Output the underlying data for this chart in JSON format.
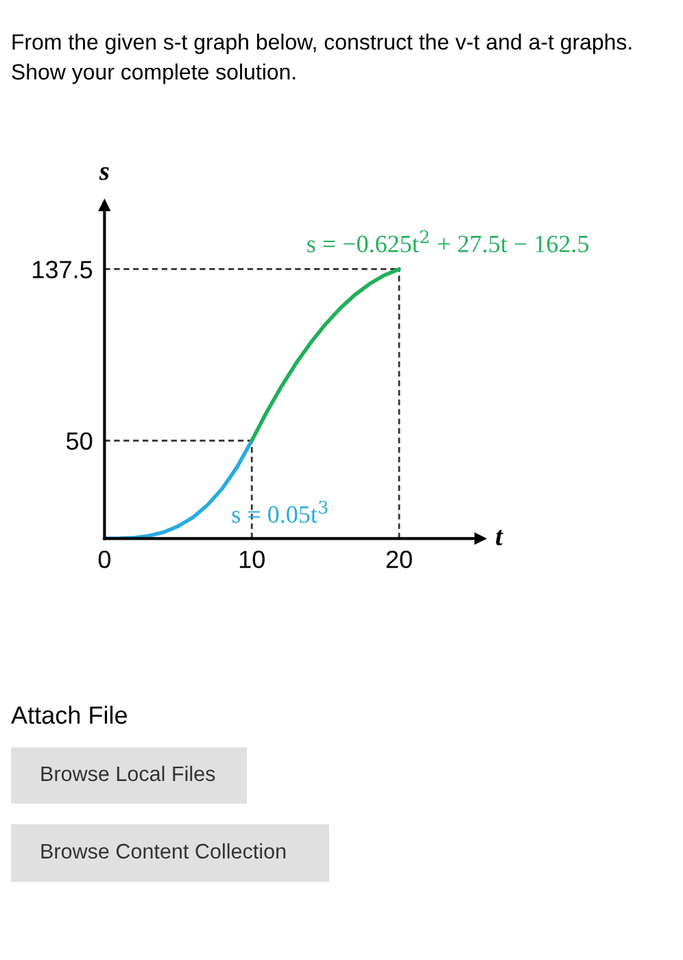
{
  "chart_data": {
    "type": "line",
    "title": "From the given s-t graph below, construct the v-t and a-t graphs. Show your complete solution.",
    "xlabel": "t",
    "ylabel": "s",
    "xlim": [
      0,
      25.5
    ],
    "ylim": [
      0,
      170
    ],
    "xticks": [
      0,
      10,
      20
    ],
    "yticks": [
      50,
      137.5
    ],
    "grid": false,
    "marker": "none",
    "line_style": "solid",
    "series": [
      {
        "name": "s = 0.05t$^{3}$",
        "color": "#29abe2",
        "x": [
          0,
          1,
          2,
          3,
          4,
          5,
          6,
          7,
          8,
          9,
          10
        ],
        "values": [
          0,
          0.1,
          0.4,
          1.4,
          3.2,
          6.3,
          10.8,
          17.2,
          25.6,
          36.5,
          50
        ]
      },
      {
        "name": "s = −0.625t$^{2}$ + 27.5t − 162.5",
        "color": "#22b05a",
        "x": [
          10,
          11,
          12,
          13,
          14,
          15,
          16,
          17,
          18,
          19,
          20
        ],
        "values": [
          50,
          64.4,
          77.5,
          89.4,
          100,
          109.4,
          117.5,
          124.4,
          130,
          134.4,
          137.5
        ]
      }
    ],
    "ref_lines": [
      {
        "axis": "y",
        "value": 50,
        "color": "#333333",
        "line_style": "dashed"
      },
      {
        "axis": "y",
        "value": 137.5,
        "color": "#333333",
        "line_style": "dashed"
      },
      {
        "axis": "x",
        "value": 10,
        "color": "#333333",
        "line_style": "dashed"
      },
      {
        "axis": "x",
        "value": 20,
        "color": "#333333",
        "line_style": "dashed"
      }
    ],
    "annotations": [
      "Attach File",
      "Browse Local Files",
      "Browse Content Collection"
    ]
  }
}
